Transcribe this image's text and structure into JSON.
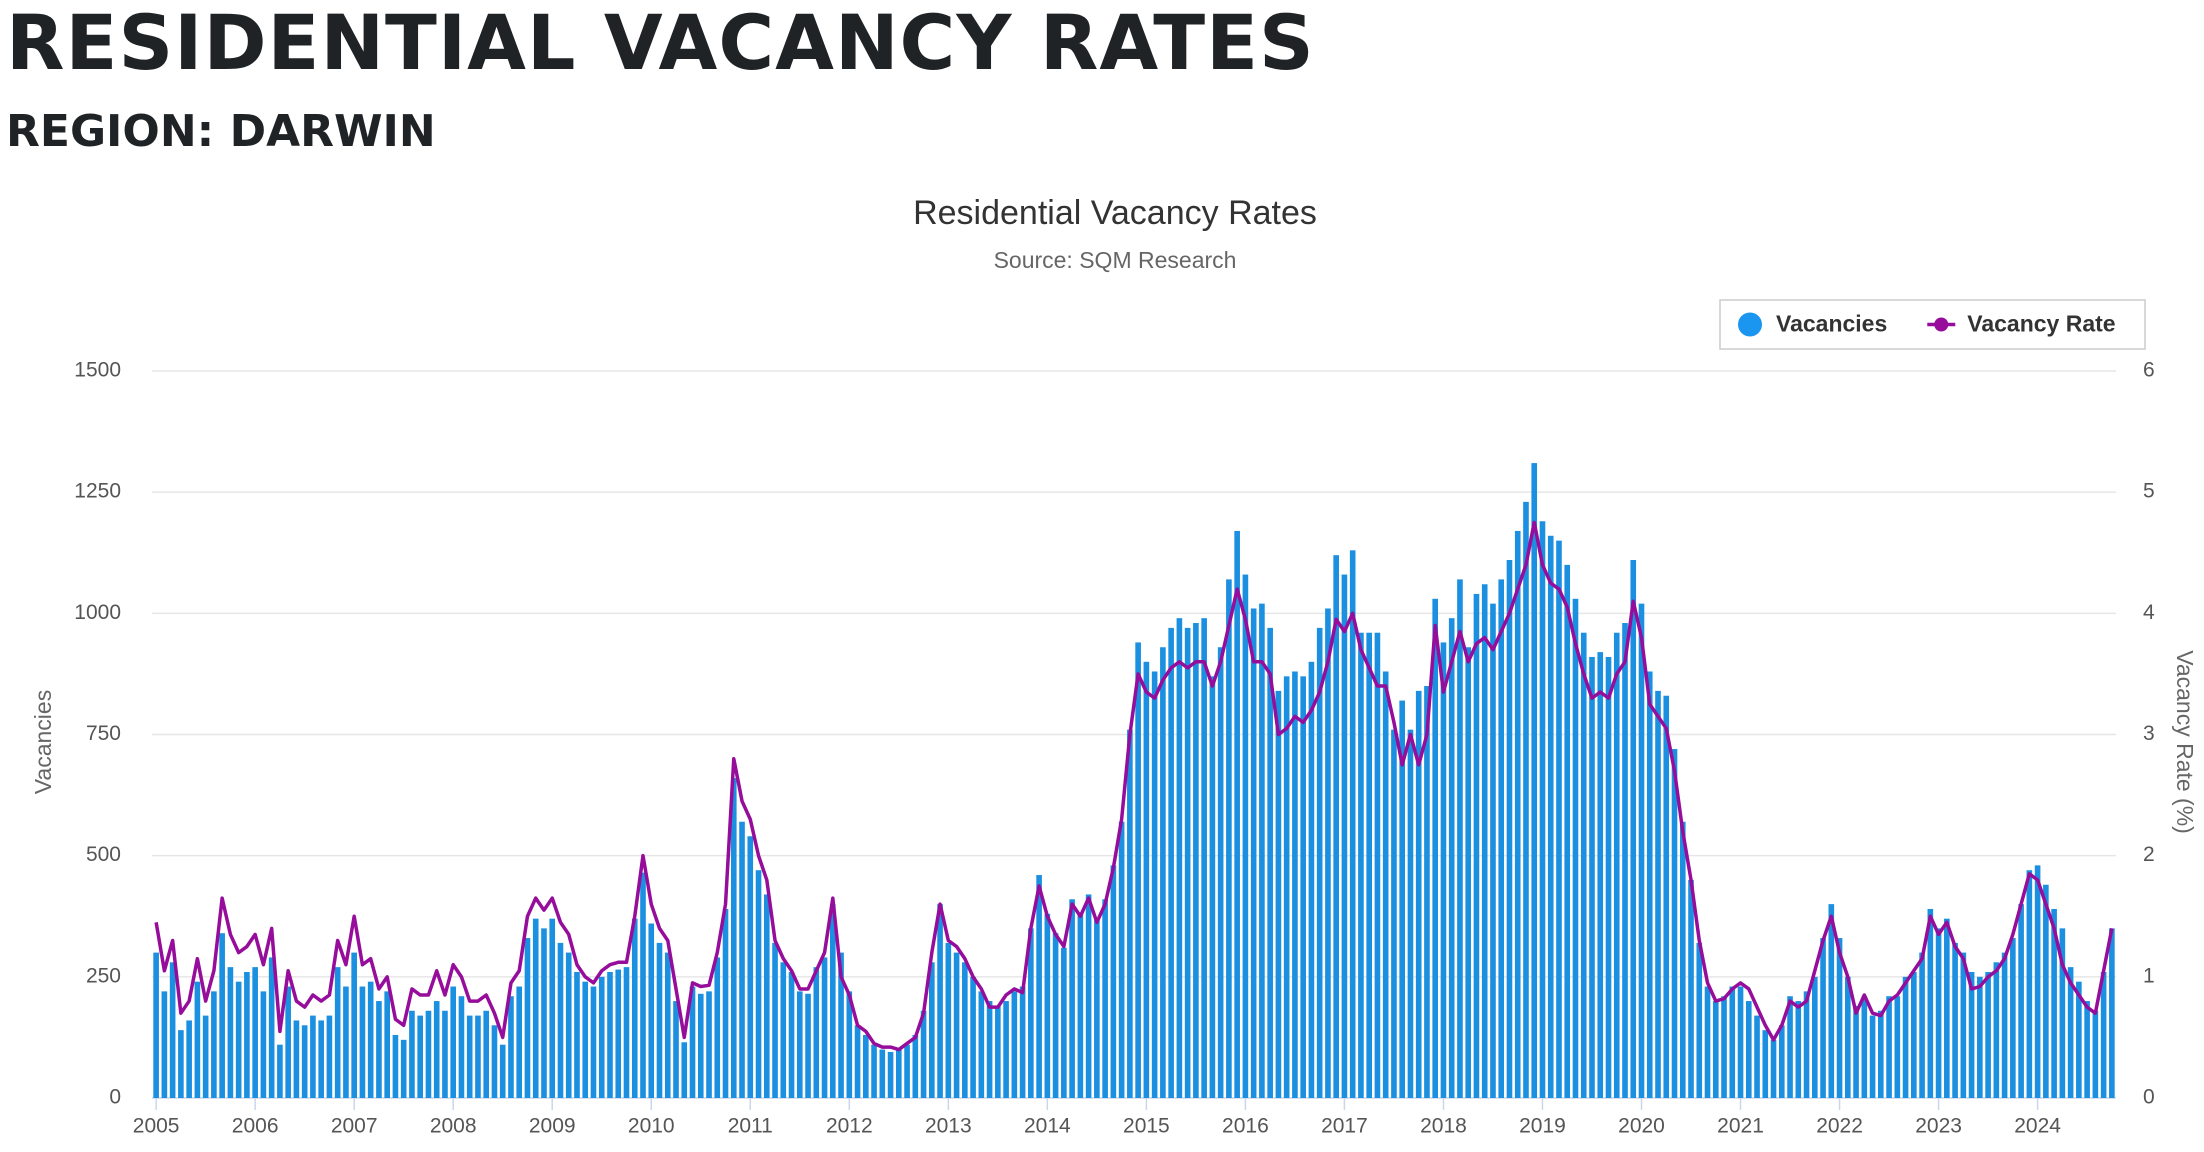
{
  "page_title": "RESIDENTIAL VACANCY RATES",
  "page_subtitle": "REGION: DARWIN",
  "chart_data": {
    "type": "bar",
    "title": "Residential Vacancy Rates",
    "subtitle": "Source: SQM Research",
    "y_label": "Vacancies",
    "y2_label": "Vacancy Rate (%)",
    "ylim": [
      0,
      1500
    ],
    "yticks": [
      0,
      250,
      500,
      750,
      1000,
      1250,
      1500
    ],
    "y2lim": [
      0,
      6
    ],
    "y2ticks": [
      0,
      1,
      2,
      3,
      4,
      5,
      6
    ],
    "grid": true,
    "legend": "top-right",
    "categories": [
      "2005",
      null,
      null,
      null,
      null,
      null,
      null,
      null,
      null,
      null,
      null,
      null,
      "2006",
      null,
      null,
      null,
      null,
      null,
      null,
      null,
      null,
      null,
      null,
      null,
      "2007",
      null,
      null,
      null,
      null,
      null,
      null,
      null,
      null,
      null,
      null,
      null,
      "2008",
      null,
      null,
      null,
      null,
      null,
      null,
      null,
      null,
      null,
      null,
      null,
      "2009",
      null,
      null,
      null,
      null,
      null,
      null,
      null,
      null,
      null,
      null,
      null,
      "2010",
      null,
      null,
      null,
      null,
      null,
      null,
      null,
      null,
      null,
      null,
      null,
      "2011",
      null,
      null,
      null,
      null,
      null,
      null,
      null,
      null,
      null,
      null,
      null,
      "2012",
      null,
      null,
      null,
      null,
      null,
      null,
      null,
      null,
      null,
      null,
      null,
      "2013",
      null,
      null,
      null,
      null,
      null,
      null,
      null,
      null,
      null,
      null,
      null,
      "2014",
      null,
      null,
      null,
      null,
      null,
      null,
      null,
      null,
      null,
      null,
      null,
      "2015",
      null,
      null,
      null,
      null,
      null,
      null,
      null,
      null,
      null,
      null,
      null,
      "2016",
      null,
      null,
      null,
      null,
      null,
      null,
      null,
      null,
      null,
      null,
      null,
      "2017",
      null,
      null,
      null,
      null,
      null,
      null,
      null,
      null,
      null,
      null,
      null,
      "2018",
      null,
      null,
      null,
      null,
      null,
      null,
      null,
      null,
      null,
      null,
      null,
      "2019",
      null,
      null,
      null,
      null,
      null,
      null,
      null,
      null,
      null,
      null,
      null,
      "2020",
      null,
      null,
      null,
      null,
      null,
      null,
      null,
      null,
      null,
      null,
      null,
      "2021",
      null,
      null,
      null,
      null,
      null,
      null,
      null,
      null,
      null,
      null,
      null,
      "2022",
      null,
      null,
      null,
      null,
      null,
      null,
      null,
      null,
      null,
      null,
      null,
      "2023",
      null,
      null,
      null,
      null,
      null,
      null,
      null,
      null,
      null,
      null,
      null,
      "2024",
      null,
      null,
      null,
      null,
      null,
      null,
      null,
      null,
      null
    ],
    "series": [
      {
        "name": "Vacancies",
        "type": "bar",
        "color": "#1b8fe0",
        "values": [
          300,
          220,
          280,
          140,
          160,
          240,
          170,
          220,
          340,
          270,
          240,
          260,
          270,
          220,
          290,
          110,
          230,
          160,
          150,
          170,
          160,
          170,
          270,
          230,
          300,
          230,
          240,
          200,
          220,
          130,
          120,
          180,
          170,
          180,
          200,
          180,
          230,
          210,
          170,
          170,
          180,
          150,
          110,
          210,
          230,
          330,
          370,
          350,
          370,
          320,
          300,
          260,
          240,
          230,
          250,
          260,
          265,
          270,
          370,
          465,
          360,
          320,
          300,
          200,
          115,
          230,
          215,
          220,
          290,
          390,
          660,
          570,
          540,
          470,
          420,
          320,
          280,
          260,
          220,
          215,
          270,
          290,
          400,
          300,
          220,
          150,
          130,
          110,
          100,
          95,
          100,
          110,
          130,
          180,
          280,
          400,
          320,
          300,
          280,
          250,
          220,
          200,
          190,
          200,
          220,
          230,
          350,
          460,
          380,
          340,
          310,
          410,
          380,
          420,
          370,
          410,
          480,
          570,
          760,
          940,
          900,
          880,
          930,
          970,
          990,
          970,
          980,
          990,
          870,
          930,
          1070,
          1170,
          1080,
          1010,
          1020,
          970,
          840,
          870,
          880,
          870,
          900,
          970,
          1010,
          1120,
          1080,
          1130,
          960,
          960,
          960,
          880,
          760,
          820,
          760,
          840,
          850,
          1030,
          940,
          990,
          1070,
          930,
          1040,
          1060,
          1020,
          1070,
          1110,
          1170,
          1230,
          1310,
          1190,
          1160,
          1150,
          1100,
          1030,
          960,
          910,
          920,
          910,
          960,
          980,
          1110,
          1020,
          880,
          840,
          830,
          720,
          570,
          450,
          320,
          230,
          200,
          210,
          230,
          230,
          200,
          170,
          140,
          120,
          150,
          210,
          200,
          220,
          250,
          330,
          400,
          330,
          250,
          190,
          210,
          170,
          180,
          210,
          210,
          250,
          260,
          300,
          390,
          350,
          370,
          320,
          300,
          260,
          250,
          260,
          280,
          300,
          330,
          400,
          470,
          480,
          440,
          390,
          350,
          270,
          240,
          200,
          180,
          260,
          350
        ]
      },
      {
        "name": "Vacancy Rate",
        "type": "line",
        "axis": "y2",
        "color": "#960d9b",
        "values": [
          1.45,
          1.05,
          1.3,
          0.7,
          0.8,
          1.15,
          0.8,
          1.05,
          1.65,
          1.35,
          1.2,
          1.25,
          1.35,
          1.1,
          1.4,
          0.55,
          1.05,
          0.8,
          0.75,
          0.85,
          0.8,
          0.85,
          1.3,
          1.1,
          1.5,
          1.1,
          1.15,
          0.9,
          1.0,
          0.65,
          0.6,
          0.9,
          0.85,
          0.85,
          1.05,
          0.85,
          1.1,
          1.0,
          0.8,
          0.8,
          0.85,
          0.7,
          0.5,
          0.95,
          1.05,
          1.5,
          1.65,
          1.55,
          1.65,
          1.45,
          1.35,
          1.1,
          1.0,
          0.95,
          1.05,
          1.1,
          1.12,
          1.12,
          1.5,
          2.0,
          1.6,
          1.4,
          1.3,
          0.9,
          0.5,
          0.95,
          0.92,
          0.93,
          1.2,
          1.6,
          2.8,
          2.45,
          2.3,
          2.0,
          1.8,
          1.3,
          1.15,
          1.05,
          0.9,
          0.9,
          1.05,
          1.2,
          1.65,
          1.0,
          0.85,
          0.6,
          0.55,
          0.45,
          0.42,
          0.42,
          0.4,
          0.45,
          0.5,
          0.7,
          1.2,
          1.6,
          1.3,
          1.25,
          1.15,
          1.0,
          0.9,
          0.75,
          0.75,
          0.85,
          0.9,
          0.87,
          1.4,
          1.75,
          1.5,
          1.35,
          1.25,
          1.6,
          1.5,
          1.65,
          1.45,
          1.6,
          1.9,
          2.3,
          3.0,
          3.5,
          3.35,
          3.3,
          3.45,
          3.55,
          3.6,
          3.55,
          3.6,
          3.6,
          3.4,
          3.6,
          3.9,
          4.2,
          3.95,
          3.6,
          3.6,
          3.5,
          3.0,
          3.05,
          3.15,
          3.1,
          3.2,
          3.35,
          3.6,
          3.95,
          3.85,
          4.0,
          3.7,
          3.55,
          3.4,
          3.4,
          3.1,
          2.75,
          3.0,
          2.75,
          3.0,
          3.9,
          3.35,
          3.6,
          3.85,
          3.6,
          3.75,
          3.8,
          3.7,
          3.85,
          4.0,
          4.2,
          4.4,
          4.75,
          4.4,
          4.25,
          4.2,
          4.05,
          3.75,
          3.5,
          3.3,
          3.35,
          3.3,
          3.5,
          3.6,
          4.1,
          3.8,
          3.25,
          3.15,
          3.05,
          2.7,
          2.2,
          1.8,
          1.3,
          0.95,
          0.8,
          0.82,
          0.9,
          0.95,
          0.9,
          0.75,
          0.6,
          0.48,
          0.6,
          0.8,
          0.75,
          0.8,
          1.05,
          1.3,
          1.5,
          1.2,
          1.0,
          0.7,
          0.85,
          0.7,
          0.68,
          0.8,
          0.85,
          0.95,
          1.05,
          1.15,
          1.5,
          1.35,
          1.45,
          1.25,
          1.15,
          0.9,
          0.92,
          1.0,
          1.05,
          1.15,
          1.35,
          1.6,
          1.85,
          1.8,
          1.6,
          1.4,
          1.1,
          0.95,
          0.85,
          0.75,
          0.7,
          1.05,
          1.4
        ]
      }
    ]
  }
}
